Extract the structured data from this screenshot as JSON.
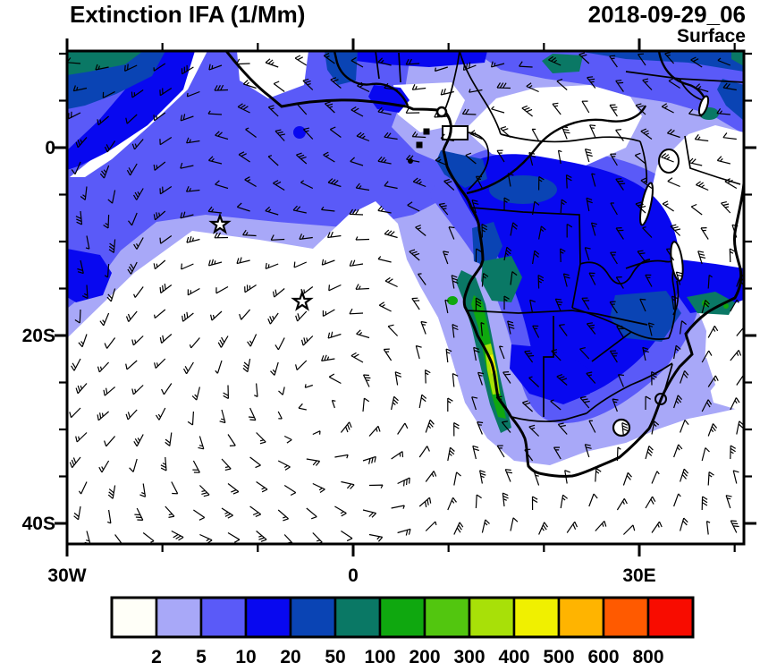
{
  "header": {
    "title": "Extinction IFA (1/Mm)",
    "datetime": "2018-09-29_06",
    "level": "Surface"
  },
  "axes": {
    "lat_labels": [
      {
        "label": "0",
        "lat": 0
      },
      {
        "label": "20S",
        "lat": -20
      },
      {
        "label": "40S",
        "lat": -40
      }
    ],
    "lon_labels": [
      {
        "label": "30W",
        "lon": -30
      },
      {
        "label": "0",
        "lon": 0
      },
      {
        "label": "30E",
        "lon": 30
      }
    ]
  },
  "colorbar": {
    "values": [
      "2",
      "5",
      "10",
      "20",
      "50",
      "100",
      "200",
      "300",
      "400",
      "500",
      "600",
      "800"
    ],
    "colors": [
      "#FFFFF8",
      "#A8A8F8",
      "#5A5AF8",
      "#0808F0",
      "#0A44B4",
      "#0A7865",
      "#0FA80F",
      "#52C60F",
      "#A8E008",
      "#F0F000",
      "#FFB400",
      "#FF5A00",
      "#F80C00"
    ]
  },
  "markers": {
    "stars": [
      [
        246,
        251
      ],
      [
        338,
        337
      ]
    ],
    "circles": [
      [
        494,
        125
      ]
    ],
    "squares": [
      [
        477,
        147
      ],
      [
        469,
        162
      ]
    ],
    "dots": [
      [
        459,
        180
      ]
    ]
  }
}
